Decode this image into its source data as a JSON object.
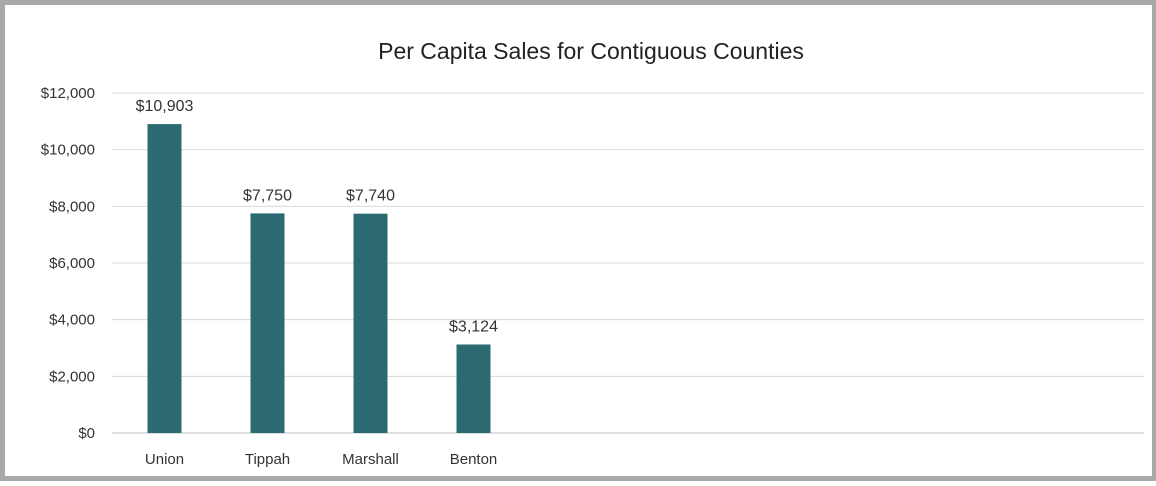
{
  "chart_data": {
    "type": "bar",
    "title": "Per Capita Sales for Contiguous Counties",
    "xlabel": "",
    "ylabel": "",
    "categories": [
      "Union",
      "Tippah",
      "Marshall",
      "Benton"
    ],
    "values": [
      10903,
      7750,
      7740,
      3124
    ],
    "data_labels": [
      "$10,903",
      "$7,750",
      "$7,740",
      "$3,124"
    ],
    "ylim": [
      0,
      12000
    ],
    "y_ticks": [
      0,
      2000,
      4000,
      6000,
      8000,
      10000,
      12000
    ],
    "y_tick_labels": [
      "$0",
      "$2,000",
      "$4,000",
      "$6,000",
      "$8,000",
      "$10,000",
      "$12,000"
    ],
    "grid": true,
    "legend": "none",
    "bar_color": "#2a6a70",
    "border_color": "#a9a9a9"
  }
}
